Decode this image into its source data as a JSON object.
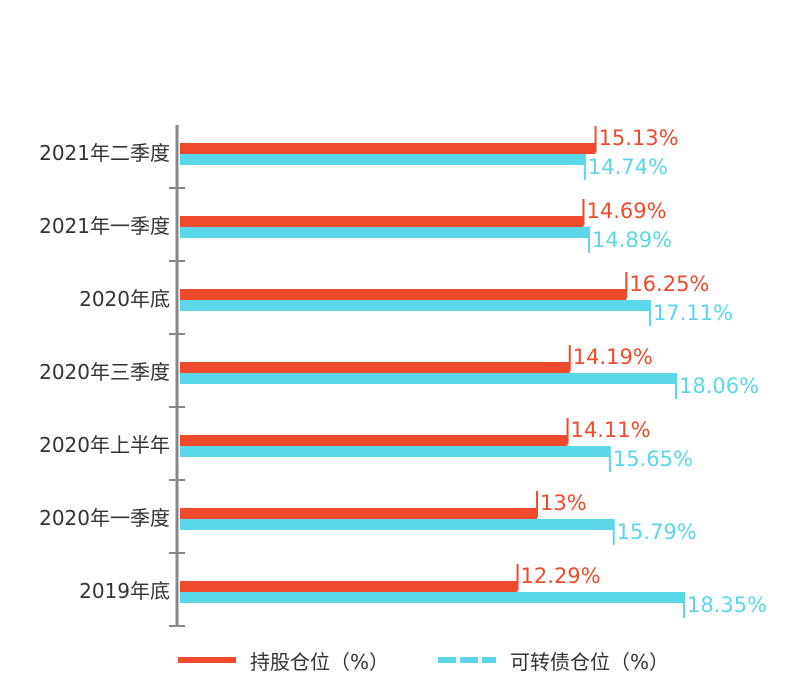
{
  "chart_data": {
    "type": "bar",
    "orientation": "horizontal",
    "categories": [
      "2021年二季度",
      "2021年一季度",
      "2020年底",
      "2020年三季度",
      "2020年上半年",
      "2020年一季度",
      "2019年底"
    ],
    "series": [
      {
        "name": "持股仓位（%）",
        "values": [
          15.13,
          14.69,
          16.25,
          14.19,
          14.11,
          13,
          12.29
        ],
        "labels": [
          "15.13%",
          "14.69%",
          "16.25%",
          "14.19%",
          "14.11%",
          "13%",
          "12.29%"
        ],
        "color": "#f04a2c"
      },
      {
        "name": "可转债仓位（%）",
        "values": [
          14.74,
          14.89,
          17.11,
          18.06,
          15.65,
          15.79,
          18.35
        ],
        "labels": [
          "14.74%",
          "14.89%",
          "17.11%",
          "18.06%",
          "15.65%",
          "15.79%",
          "18.35%"
        ],
        "color": "#5ad8ea"
      }
    ],
    "xlim": [
      0,
      18.35
    ],
    "grid": false,
    "legend_position": "bottom"
  },
  "colors": {
    "axis": "#888888",
    "text": "#333333"
  }
}
